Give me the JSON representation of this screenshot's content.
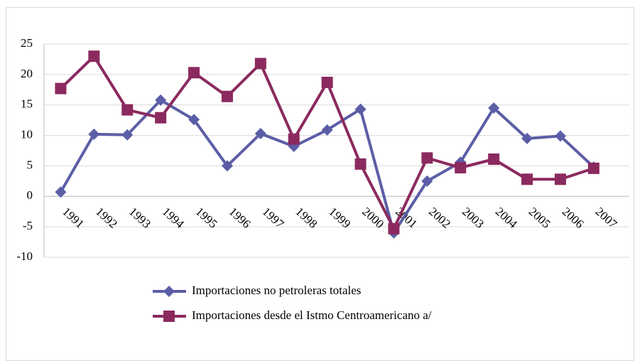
{
  "chart_data": {
    "type": "line",
    "categories": [
      "1991",
      "1992",
      "1993",
      "1994",
      "1995",
      "1996",
      "1997",
      "1998",
      "1999",
      "2000",
      "2001",
      "2002",
      "2003",
      "2004",
      "2005",
      "2006",
      "2007"
    ],
    "series": [
      {
        "name": "Importaciones no petroleras totales",
        "color": "#5b5ea6",
        "marker": "diamond",
        "values": [
          0.7,
          10.2,
          10.1,
          15.8,
          12.6,
          5.0,
          10.3,
          8.2,
          10.9,
          14.3,
          -6.0,
          2.5,
          5.6,
          14.5,
          9.5,
          9.9,
          4.8
        ]
      },
      {
        "name": "Importaciones desde el Istmo Centroamericano a/",
        "color": "#8b2a5e",
        "marker": "square",
        "values": [
          17.7,
          23.0,
          14.2,
          12.9,
          20.3,
          16.4,
          21.8,
          9.4,
          18.7,
          5.3,
          -5.3,
          6.3,
          4.7,
          6.1,
          2.8,
          2.8,
          4.6
        ]
      }
    ],
    "ylim": [
      -10,
      25
    ],
    "yticks": [
      -10,
      -5,
      0,
      5,
      10,
      15,
      20,
      25
    ],
    "grid": true,
    "legend": "bottom"
  }
}
